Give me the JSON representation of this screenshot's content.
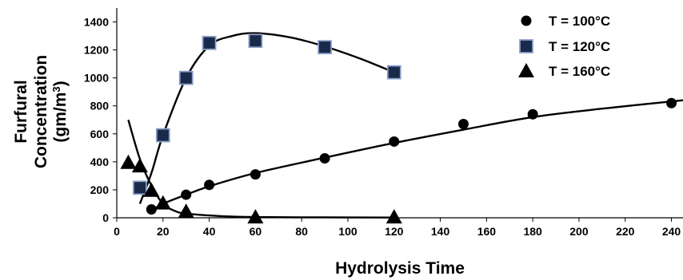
{
  "chart_data": {
    "type": "scatter",
    "xlabel": "Hydrolysis Time",
    "ylabel_lines": [
      "Furfural",
      "Concentration",
      "(gm/m",
      "3",
      ")"
    ],
    "xlim": [
      0,
      245
    ],
    "ylim": [
      0,
      1500
    ],
    "xticks": [
      0,
      20,
      40,
      60,
      80,
      100,
      120,
      140,
      160,
      180,
      200,
      220,
      240
    ],
    "yticks": [
      0,
      200,
      400,
      600,
      800,
      1000,
      1200,
      1400
    ],
    "grid": false,
    "legend_position": "top-right",
    "series": [
      {
        "name": "T = 100°C",
        "marker": "circle",
        "color": "#000000",
        "points": [
          [
            15,
            60
          ],
          [
            30,
            165
          ],
          [
            40,
            235
          ],
          [
            60,
            310
          ],
          [
            90,
            425
          ],
          [
            120,
            545
          ],
          [
            150,
            670
          ],
          [
            180,
            740
          ],
          [
            240,
            820
          ]
        ],
        "fit": [
          [
            15,
            50
          ],
          [
            20,
            100
          ],
          [
            30,
            165
          ],
          [
            40,
            225
          ],
          [
            60,
            320
          ],
          [
            90,
            430
          ],
          [
            120,
            535
          ],
          [
            150,
            630
          ],
          [
            180,
            720
          ],
          [
            210,
            780
          ],
          [
            245,
            840
          ]
        ]
      },
      {
        "name": "T = 120°C",
        "marker": "square",
        "color": "#1a2a4a",
        "edge": "#8aa0c8",
        "points": [
          [
            10,
            215
          ],
          [
            20,
            590
          ],
          [
            30,
            1000
          ],
          [
            40,
            1250
          ],
          [
            60,
            1265
          ],
          [
            90,
            1220
          ],
          [
            120,
            1040
          ]
        ],
        "fit": [
          [
            10,
            100
          ],
          [
            15,
            320
          ],
          [
            20,
            590
          ],
          [
            30,
            1000
          ],
          [
            40,
            1230
          ],
          [
            50,
            1300
          ],
          [
            60,
            1320
          ],
          [
            75,
            1290
          ],
          [
            90,
            1225
          ],
          [
            105,
            1140
          ],
          [
            120,
            1040
          ]
        ]
      },
      {
        "name": "T = 160°C",
        "marker": "triangle",
        "color": "#000000",
        "points": [
          [
            5,
            395
          ],
          [
            10,
            370
          ],
          [
            15,
            195
          ],
          [
            20,
            105
          ],
          [
            30,
            45
          ],
          [
            60,
            5
          ],
          [
            120,
            5
          ]
        ],
        "fit": [
          [
            5,
            700
          ],
          [
            10,
            420
          ],
          [
            15,
            230
          ],
          [
            20,
            100
          ],
          [
            25,
            50
          ],
          [
            30,
            30
          ],
          [
            45,
            12
          ],
          [
            60,
            5
          ],
          [
            90,
            3
          ],
          [
            120,
            2
          ]
        ]
      }
    ]
  }
}
